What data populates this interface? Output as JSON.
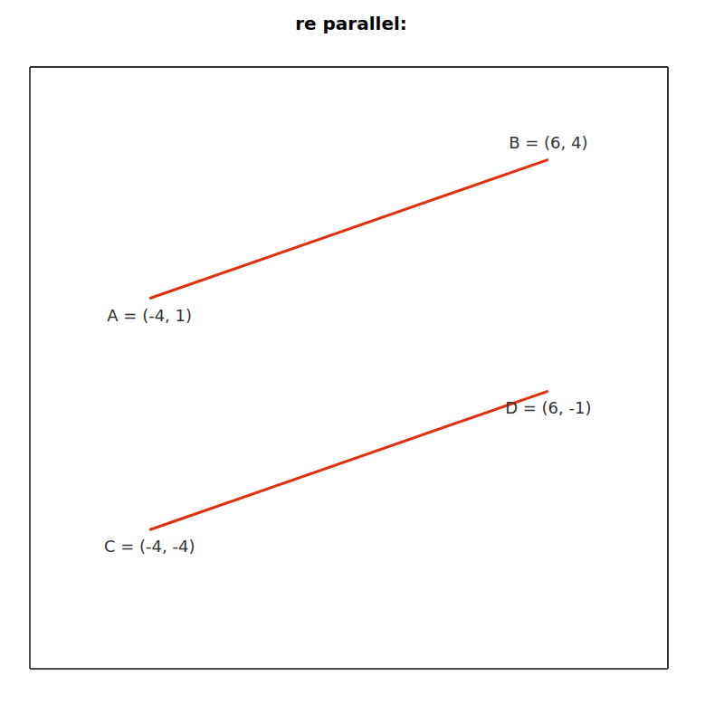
{
  "chart_data": {
    "type": "line",
    "title": "re parallel:",
    "x": [
      -4,
      6
    ],
    "series": [
      {
        "color": "#e03010",
        "values": [
          1,
          4
        ]
      },
      {
        "color": "#e03010",
        "values": [
          -4,
          -1
        ]
      }
    ],
    "annotations": [
      {
        "text": "B = (6, 4)",
        "x": 6,
        "y": 4
      },
      {
        "text": "A = (-4, 1)",
        "x": -4,
        "y": 1
      },
      {
        "text": "D = (6, -1)",
        "x": 6,
        "y": -1
      },
      {
        "text": "C = (-4, -4)",
        "x": -4,
        "y": -4
      }
    ],
    "xlim": [
      -7,
      9
    ],
    "ylim": [
      -7,
      6
    ],
    "xticks": [
      0
    ],
    "yticks": [
      0
    ],
    "grid": true,
    "tick_labels": false
  }
}
